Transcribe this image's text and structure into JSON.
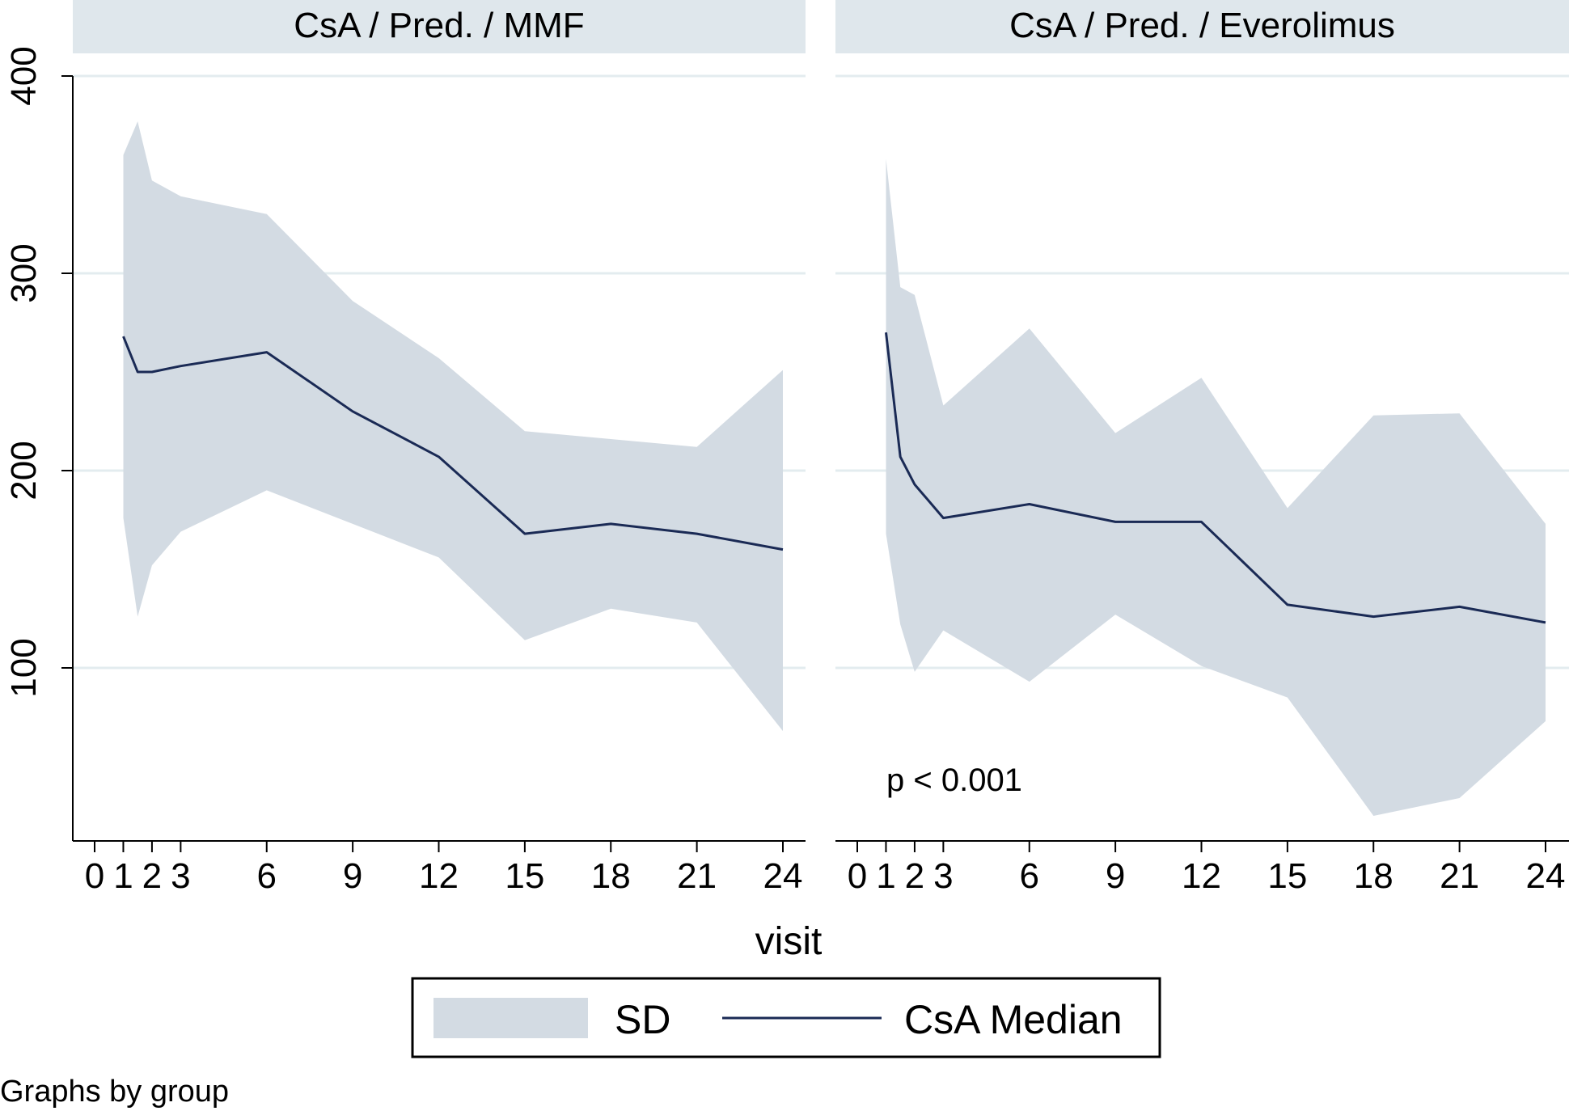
{
  "colors": {
    "band": "#d3dbe3",
    "median_line": "#1a2a55",
    "strip_bg": "#dfe7ec",
    "grid": "#e3ecef",
    "axis": "#000000"
  },
  "legend": {
    "items": [
      "SD",
      "CsA Median"
    ]
  },
  "caption": "Graphs by group",
  "chart_data": [
    {
      "type": "area",
      "title": "CsA / Pred. / MMF",
      "xlabel": "visit",
      "ylabel": "",
      "xlim": [
        0,
        24
      ],
      "ylim": [
        10,
        400
      ],
      "x_ticks": [
        0,
        1,
        2,
        3,
        6,
        9,
        12,
        15,
        18,
        21,
        24
      ],
      "y_ticks": [
        100,
        200,
        300,
        400
      ],
      "grid": true,
      "annotation": "",
      "series": [
        {
          "name": "SD",
          "kind": "band",
          "x": [
            1,
            1.5,
            2,
            3,
            6,
            9,
            12,
            15,
            18,
            21,
            24
          ],
          "upper": [
            360,
            377,
            347,
            339,
            330,
            286,
            257,
            220,
            216,
            212,
            251
          ],
          "lower": [
            176,
            126,
            152,
            169,
            190,
            173,
            156,
            114,
            130,
            123,
            68
          ]
        },
        {
          "name": "CsA Median",
          "kind": "line",
          "x": [
            1,
            1.5,
            2,
            3,
            6,
            9,
            12,
            15,
            18,
            21,
            24
          ],
          "values": [
            268,
            250,
            250,
            253,
            260,
            230,
            207,
            168,
            173,
            168,
            160
          ]
        }
      ]
    },
    {
      "type": "area",
      "title": "CsA / Pred. / Everolimus",
      "xlabel": "visit",
      "ylabel": "",
      "xlim": [
        0,
        24
      ],
      "ylim": [
        10,
        400
      ],
      "x_ticks": [
        0,
        1,
        2,
        3,
        6,
        9,
        12,
        15,
        18,
        21,
        24
      ],
      "y_ticks": [
        100,
        200,
        300,
        400
      ],
      "grid": true,
      "annotation": "p < 0.001",
      "series": [
        {
          "name": "SD",
          "kind": "band",
          "x": [
            1,
            1.5,
            2,
            3,
            6,
            9,
            12,
            15,
            18,
            21,
            24
          ],
          "upper": [
            358,
            293,
            289,
            233,
            272,
            219,
            247,
            181,
            228,
            229,
            173
          ],
          "lower": [
            168,
            122,
            98,
            119,
            93,
            127,
            101,
            85,
            25,
            34,
            73
          ]
        },
        {
          "name": "CsA Median",
          "kind": "line",
          "x": [
            1,
            1.5,
            2,
            3,
            6,
            9,
            12,
            15,
            18,
            21,
            24
          ],
          "values": [
            270,
            207,
            193,
            176,
            183,
            174,
            174,
            132,
            126,
            131,
            123
          ]
        }
      ]
    }
  ]
}
